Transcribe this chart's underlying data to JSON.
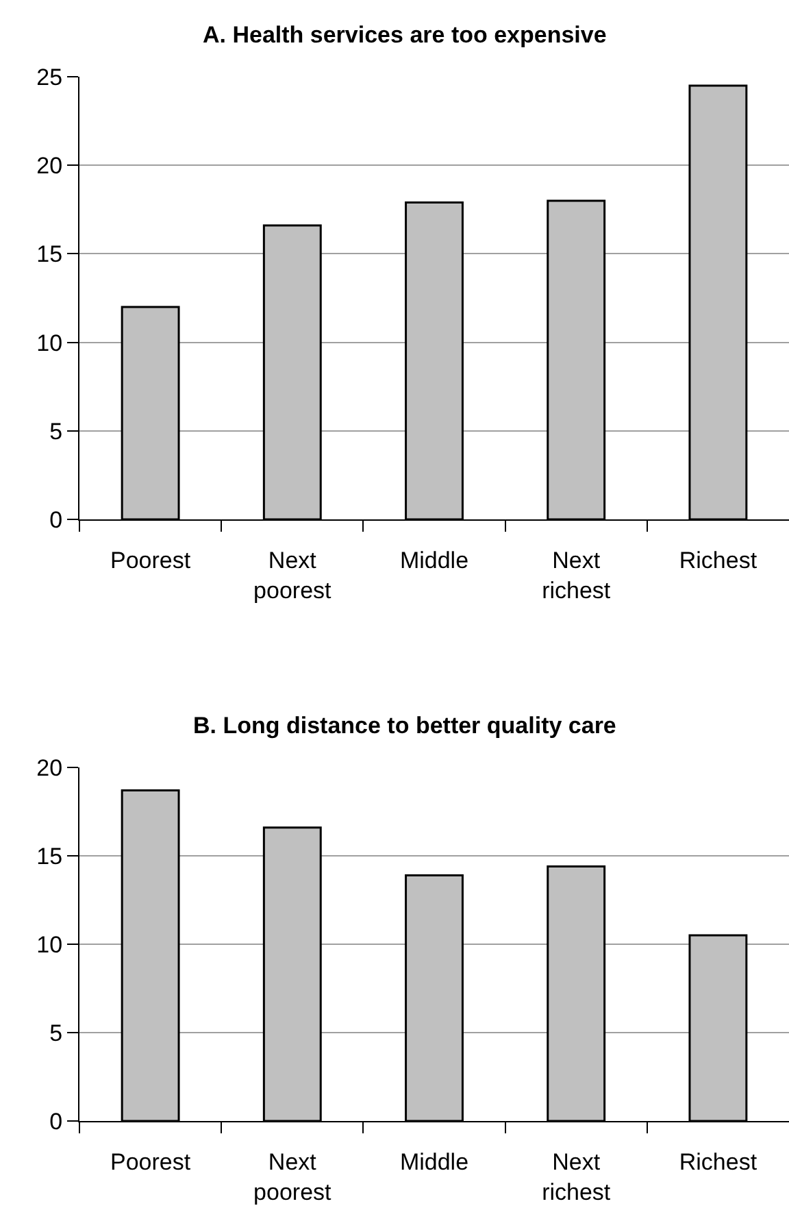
{
  "chart_data": [
    {
      "type": "bar",
      "title": "A. Health services are too expensive",
      "categories": [
        "Poorest",
        "Next poorest",
        "Middle",
        "Next richest",
        "Richest"
      ],
      "values": [
        12.0,
        16.6,
        17.9,
        18.0,
        24.5
      ],
      "color": "#c0c0c0",
      "ylim": [
        0,
        25
      ],
      "yticks": [
        0,
        5,
        10,
        15,
        20,
        25
      ],
      "grid": "y"
    },
    {
      "type": "bar",
      "title": "B. Long distance to better quality care",
      "categories": [
        "Poorest",
        "Next poorest",
        "Middle",
        "Next richest",
        "Richest"
      ],
      "values": [
        18.7,
        16.6,
        13.9,
        14.4,
        10.5
      ],
      "color": "#c0c0c0",
      "ylim": [
        0,
        20
      ],
      "yticks": [
        0,
        5,
        10,
        15,
        20
      ],
      "grid": "y"
    }
  ]
}
